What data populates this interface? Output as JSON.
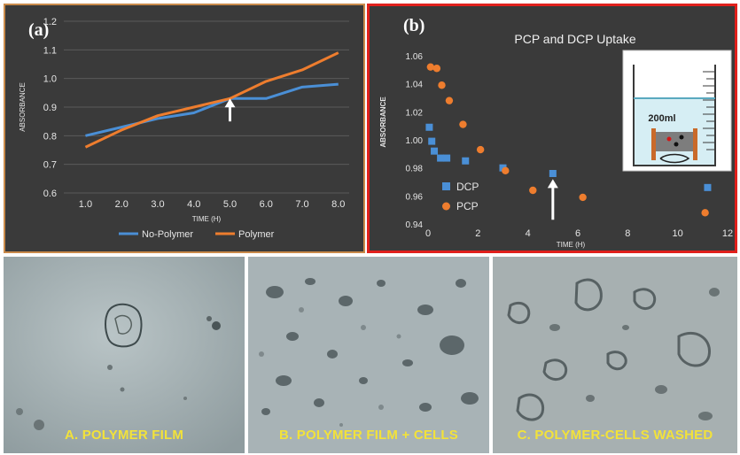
{
  "chart_data": [
    {
      "type": "line",
      "panel_label": "(a)",
      "xlabel": "TIME (H)",
      "ylabel": "ABSORBANCE",
      "x": [
        1.0,
        2.0,
        3.0,
        4.0,
        5.0,
        6.0,
        7.0,
        8.0
      ],
      "xticks": [
        "1.0",
        "2.0",
        "3.0",
        "4.0",
        "5.0",
        "6.0",
        "7.0",
        "8.0"
      ],
      "ylim": [
        0.6,
        1.2
      ],
      "yticks": [
        "0.6",
        "0.7",
        "0.8",
        "0.9",
        "1.0",
        "1.1",
        "1.2"
      ],
      "grid": true,
      "legend": "bottom",
      "series": [
        {
          "name": "No-Polymer",
          "color": "#4a8fd6",
          "values": [
            0.8,
            0.83,
            0.86,
            0.88,
            0.93,
            0.93,
            0.97,
            0.98
          ]
        },
        {
          "name": "Polymer",
          "color": "#ee7d2e",
          "values": [
            0.76,
            0.82,
            0.87,
            0.9,
            0.93,
            0.99,
            1.03,
            1.09
          ]
        }
      ],
      "annotations": [
        {
          "type": "arrow",
          "x": 5.0,
          "y_from": 0.85,
          "y_to": 0.93,
          "color": "#ffffff"
        }
      ]
    },
    {
      "type": "scatter",
      "panel_label": "(b)",
      "title": "PCP and DCP Uptake",
      "xlabel": "TIME (H)",
      "ylabel": "ABSORBANCE",
      "xlim": [
        0,
        12
      ],
      "xticks": [
        "0",
        "2",
        "4",
        "6",
        "8",
        "10",
        "12"
      ],
      "ylim": [
        0.94,
        1.06
      ],
      "yticks": [
        "0.94",
        "0.96",
        "0.98",
        "1.00",
        "1.02",
        "1.04",
        "1.06"
      ],
      "grid": false,
      "legend": "left",
      "series": [
        {
          "name": "DCP",
          "marker": "square",
          "color": "#4a8fd6",
          "x": [
            0.05,
            0.15,
            0.25,
            0.5,
            0.75,
            1.5,
            3.0,
            5.0,
            11.2
          ],
          "y": [
            1.009,
            0.999,
            0.992,
            0.987,
            0.987,
            0.985,
            0.98,
            0.976,
            0.966
          ]
        },
        {
          "name": "PCP",
          "marker": "circle",
          "color": "#ee7d2e",
          "x": [
            0.1,
            0.35,
            0.55,
            0.85,
            1.4,
            2.1,
            3.1,
            4.2,
            6.2,
            11.1
          ],
          "y": [
            1.052,
            1.051,
            1.039,
            1.028,
            1.011,
            0.993,
            0.978,
            0.964,
            0.959,
            0.948
          ]
        }
      ],
      "annotations": [
        {
          "type": "arrow",
          "x": 5.0,
          "y_from": 0.943,
          "y_to": 0.972,
          "color": "#ffffff"
        }
      ],
      "inset": {
        "label": "200ml",
        "depicts": "beaker-with-stirrer"
      }
    }
  ],
  "photos": [
    {
      "caption": "A. POLYMER FILM"
    },
    {
      "caption": "B. POLYMER FILM + CELLS"
    },
    {
      "caption": "C. POLYMER-CELLS WASHED"
    }
  ]
}
